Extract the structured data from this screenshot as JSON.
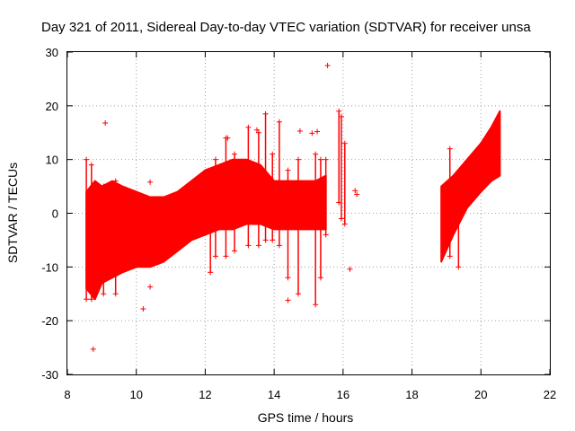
{
  "chart_data": {
    "type": "scatter",
    "title": "Day 321 of 2011, Sidereal Day-to-day VTEC variation (SDTVAR) for receiver unsa",
    "xlabel": "GPS time / hours",
    "ylabel": "SDTVAR / TECUs",
    "xlim": [
      8,
      22
    ],
    "ylim": [
      -30,
      30
    ],
    "xticks": [
      "8",
      "10",
      "12",
      "14",
      "16",
      "18",
      "20",
      "22"
    ],
    "yticks": [
      "-30",
      "-20",
      "-10",
      "0",
      "10",
      "20",
      "30"
    ],
    "grid": true,
    "marker": "+",
    "color": "#ff0000",
    "bands": [
      {
        "name": "dense-band-main",
        "x": [
          8.55,
          8.8,
          9.0,
          9.3,
          9.6,
          10.0,
          10.4,
          10.8,
          11.2,
          11.6,
          12.0,
          12.4,
          12.8,
          13.2,
          13.6,
          14.0,
          14.4,
          14.8,
          15.2,
          15.5
        ],
        "upper": [
          4,
          6,
          5,
          6,
          5,
          4,
          3,
          3,
          4,
          6,
          8,
          9,
          10,
          10,
          9,
          6,
          6,
          6,
          6,
          7
        ],
        "lower": [
          -14,
          -16,
          -13,
          -12,
          -11,
          -10,
          -10,
          -9,
          -7,
          -5,
          -4,
          -3,
          -3,
          -2,
          -2,
          -3,
          -3,
          -3,
          -3,
          -3
        ]
      },
      {
        "name": "dense-band-late",
        "x": [
          18.85,
          19.2,
          19.6,
          20.0,
          20.3,
          20.55
        ],
        "upper": [
          5,
          7,
          10,
          13,
          16,
          19
        ],
        "lower": [
          -9,
          -4,
          1,
          4,
          6,
          7
        ]
      }
    ],
    "spikes": [
      {
        "x": 8.55,
        "lo": -16,
        "hi": 10
      },
      {
        "x": 8.7,
        "lo": -16,
        "hi": 9
      },
      {
        "x": 9.05,
        "lo": -15,
        "hi": 5
      },
      {
        "x": 9.4,
        "lo": -15,
        "hi": 6
      },
      {
        "x": 12.15,
        "lo": -11,
        "hi": 8
      },
      {
        "x": 12.3,
        "lo": -8,
        "hi": 10
      },
      {
        "x": 12.6,
        "lo": -8,
        "hi": 14
      },
      {
        "x": 12.85,
        "lo": -7,
        "hi": 11
      },
      {
        "x": 13.25,
        "lo": -6,
        "hi": 16
      },
      {
        "x": 13.55,
        "lo": -6,
        "hi": 15
      },
      {
        "x": 13.75,
        "lo": -5,
        "hi": 18.5
      },
      {
        "x": 13.95,
        "lo": -5,
        "hi": 11
      },
      {
        "x": 14.15,
        "lo": -6,
        "hi": 17
      },
      {
        "x": 14.4,
        "lo": -12,
        "hi": 8
      },
      {
        "x": 14.7,
        "lo": -15,
        "hi": 10
      },
      {
        "x": 15.2,
        "lo": -17,
        "hi": 11
      },
      {
        "x": 15.35,
        "lo": -12,
        "hi": 10
      },
      {
        "x": 15.5,
        "lo": -4,
        "hi": 10
      },
      {
        "x": 15.88,
        "lo": 2,
        "hi": 19
      },
      {
        "x": 15.95,
        "lo": -1,
        "hi": 18
      },
      {
        "x": 16.05,
        "lo": -2,
        "hi": 13
      },
      {
        "x": 19.1,
        "lo": -8,
        "hi": 12
      },
      {
        "x": 19.35,
        "lo": -10,
        "hi": 7
      }
    ],
    "scattered_points": [
      {
        "x": 8.75,
        "y": -25.3
      },
      {
        "x": 9.1,
        "y": 16.8
      },
      {
        "x": 10.2,
        "y": -17.8
      },
      {
        "x": 10.4,
        "y": -13.7
      },
      {
        "x": 10.4,
        "y": 5.8
      },
      {
        "x": 12.65,
        "y": 14
      },
      {
        "x": 13.5,
        "y": 15.5
      },
      {
        "x": 14.4,
        "y": -16.2
      },
      {
        "x": 14.75,
        "y": 15.3
      },
      {
        "x": 15.1,
        "y": 14.9
      },
      {
        "x": 15.25,
        "y": 15.2
      },
      {
        "x": 15.55,
        "y": 27.5
      },
      {
        "x": 16.2,
        "y": -10.4
      },
      {
        "x": 16.35,
        "y": 4.2
      },
      {
        "x": 16.4,
        "y": 3.5
      }
    ]
  }
}
